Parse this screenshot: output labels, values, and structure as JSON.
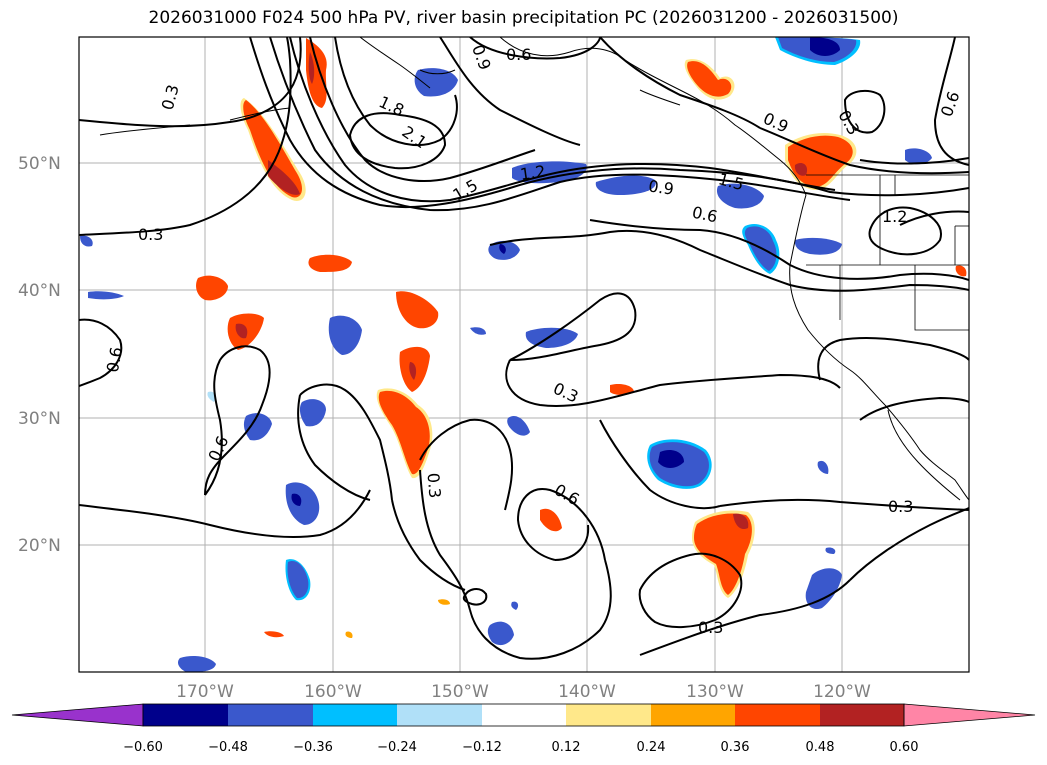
{
  "title": "2026031000 F024 500 hPa PV, river basin precipitation PC (2026031200 - 2026031500)",
  "map": {
    "lat_labels": [
      "50°N",
      "40°N",
      "30°N",
      "20°N"
    ],
    "lon_labels": [
      "170°W",
      "160°W",
      "150°W",
      "140°W",
      "130°W",
      "120°W"
    ],
    "contour_labels": [
      "0.3",
      "0.6",
      "0.9",
      "1.2",
      "1.5",
      "1.8",
      "2.1"
    ],
    "colors": {
      "neg_extreme": "#9932cc",
      "neg_060": "#00008b",
      "neg_048": "#3a58cc",
      "neg_036": "#00bfff",
      "neg_024": "#b0e0f8",
      "pos_024": "#ffe88a",
      "pos_036": "#ffa500",
      "pos_048": "#ff4500",
      "pos_060": "#b22222",
      "pos_extreme": "#ff85a6"
    }
  },
  "colorbar": {
    "ticks": [
      "−0.60",
      "−0.48",
      "−0.36",
      "−0.24",
      "−0.12",
      "0.12",
      "0.24",
      "0.36",
      "0.48",
      "0.60"
    ],
    "colors": [
      "#9932cc",
      "#00008b",
      "#3a58cc",
      "#3a58cc",
      "#00bfff",
      "#b0e0f8",
      "#ffffff",
      "#ffe88a",
      "#ffa500",
      "#ff4500",
      "#b22222",
      "#ff85a6"
    ]
  }
}
